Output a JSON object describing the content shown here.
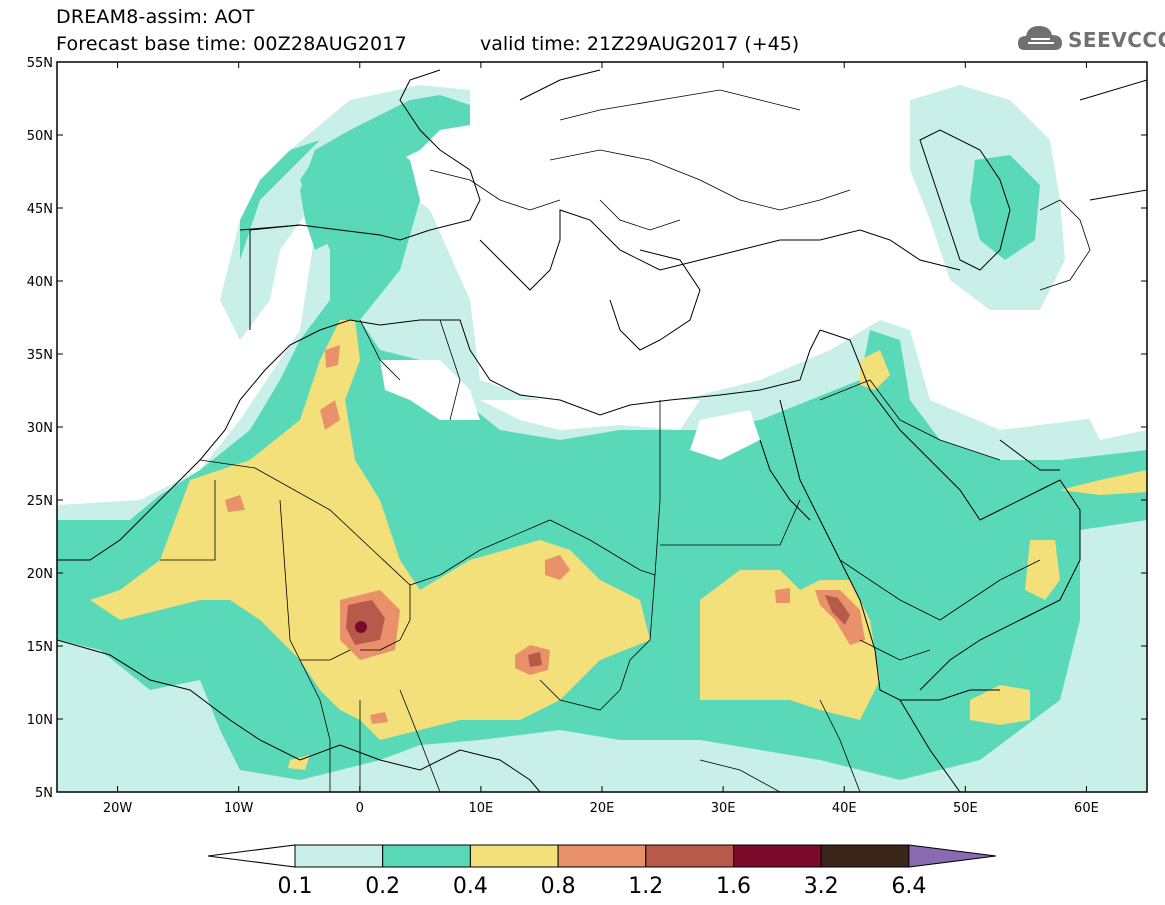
{
  "header": {
    "title": "DREAM8-assim: AOT",
    "forecast_base": "Forecast base time: 00Z28AUG2017",
    "valid_time": "valid time: 21Z29AUG2017 (+45)"
  },
  "logo": {
    "text": "SEEVCCC",
    "icon": "cloud-icon"
  },
  "map": {
    "lon_range": [
      -25,
      65
    ],
    "lat_range": [
      5,
      55
    ],
    "lat_labels": [
      "55N",
      "50N",
      "45N",
      "40N",
      "35N",
      "30N",
      "25N",
      "20N",
      "15N",
      "10N",
      "5N"
    ],
    "lon_labels": [
      "20W",
      "10W",
      "0",
      "10E",
      "20E",
      "30E",
      "40E",
      "50E",
      "60E"
    ]
  },
  "colorbar": {
    "labels": [
      "0.1",
      "0.2",
      "0.4",
      "0.8",
      "1.2",
      "1.6",
      "3.2",
      "6.4"
    ],
    "colors": [
      "#ffffff",
      "#c8f0e8",
      "#5ad9b8",
      "#f4e07a",
      "#e8916a",
      "#b85a4a",
      "#7a0a2a",
      "#3a2618",
      "#8a6ab0"
    ]
  },
  "level_colors": {
    "l1": "#c8f0e8",
    "l2": "#5ad9b8",
    "l3": "#f4e07a",
    "l4": "#e8916a",
    "l5": "#b85a4a",
    "l6": "#7a0a2a"
  }
}
